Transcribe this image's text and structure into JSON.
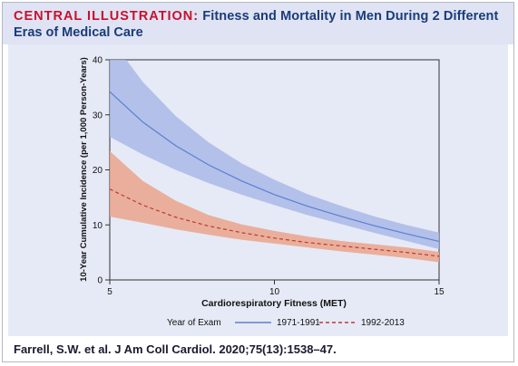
{
  "header": {
    "label": "CENTRAL ILLUSTRATION:",
    "title_line1": "Fitness and Mortality in Men During 2 Different",
    "title_line2": "Eras of Medical Care"
  },
  "citation": "Farrell, S.W. et al. J Am Coll Cardiol. 2020;75(13):1538–47.",
  "colors": {
    "series1_line": "#5b7fcf",
    "series1_band": "#a9b9e8",
    "series2_line": "#c0392b",
    "series2_band": "#e9a48c",
    "header_bg": "#dfe3f3",
    "panel_bg": "#e6eaf6"
  },
  "chart_data": {
    "type": "line",
    "title": "",
    "xlabel": "Cardiorespiratory Fitness (MET)",
    "ylabel": "10-Year Cumulative Incidence (per 1,000 Person-Years)",
    "xlim": [
      5,
      15
    ],
    "ylim": [
      0,
      40
    ],
    "xticks": [
      5,
      10,
      15
    ],
    "yticks": [
      0,
      10,
      20,
      30,
      40
    ],
    "grid": false,
    "legend": {
      "title": "Year of Exam",
      "placement": "bottom"
    },
    "x": [
      5,
      6,
      7,
      8,
      9,
      10,
      11,
      12,
      13,
      14,
      15
    ],
    "series": [
      {
        "name": "1971-1991",
        "style": "solid",
        "values": [
          34.2,
          28.7,
          24.4,
          20.9,
          18.0,
          15.5,
          13.4,
          11.6,
          9.9,
          8.4,
          7.0
        ],
        "lower": [
          26.0,
          22.8,
          20.0,
          17.6,
          15.5,
          13.6,
          11.8,
          10.2,
          8.6,
          7.1,
          5.6
        ],
        "upper": [
          44.0,
          36.0,
          29.8,
          25.0,
          21.2,
          18.2,
          15.6,
          13.5,
          11.6,
          10.0,
          8.6
        ]
      },
      {
        "name": "1992-2013",
        "style": "dashed",
        "values": [
          16.5,
          13.6,
          11.4,
          9.8,
          8.6,
          7.6,
          6.8,
          6.2,
          5.6,
          5.0,
          4.3
        ],
        "lower": [
          11.5,
          10.4,
          9.2,
          8.2,
          7.3,
          6.6,
          5.9,
          5.2,
          4.6,
          4.0,
          3.2
        ],
        "upper": [
          23.4,
          18.0,
          14.4,
          11.8,
          10.1,
          8.9,
          7.9,
          7.1,
          6.5,
          5.9,
          5.1
        ]
      }
    ]
  }
}
